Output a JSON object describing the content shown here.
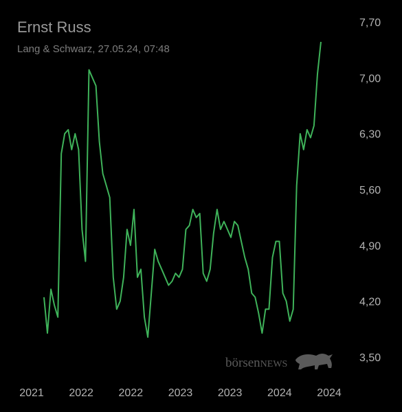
{
  "header": {
    "title": "Ernst Russ",
    "subtitle": "Lang & Schwarz, 27.05.24, 07:48"
  },
  "watermark": {
    "text_lower": "börsen",
    "text_upper": "NEWS",
    "icon": "bull-icon"
  },
  "colors": {
    "background": "#000000",
    "line": "#3fb35a",
    "text": "#b3b3b3"
  },
  "chart_data": {
    "type": "line",
    "title": "Ernst Russ",
    "ylim": [
      3.5,
      7.7
    ],
    "y_ticks": [
      "7,70",
      "7,00",
      "6,30",
      "5,60",
      "4,90",
      "4,20",
      "3,50"
    ],
    "x_ticks": [
      "2021",
      "2022",
      "2022",
      "2023",
      "2023",
      "2024",
      "2024"
    ],
    "grid": false,
    "legend": "none",
    "series": [
      {
        "values": [
          4.25,
          3.8,
          4.35,
          4.15,
          4.0,
          6.05,
          6.3,
          6.35,
          6.1,
          6.3,
          6.1,
          5.1,
          4.7,
          7.1,
          7.0,
          6.9,
          6.2,
          5.8,
          5.65,
          5.5,
          4.5,
          4.1,
          4.2,
          4.5,
          5.1,
          4.9,
          5.35,
          4.5,
          4.6,
          4.0,
          3.75,
          4.3,
          4.85,
          4.7,
          4.6,
          4.5,
          4.4,
          4.45,
          4.55,
          4.5,
          4.6,
          5.1,
          5.15,
          5.35,
          5.25,
          5.3,
          4.55,
          4.45,
          4.6,
          5.05,
          5.35,
          5.1,
          5.2,
          5.1,
          5.0,
          5.2,
          5.15,
          4.95,
          4.75,
          4.6,
          4.3,
          4.25,
          4.05,
          3.8,
          4.1,
          4.1,
          4.75,
          4.95,
          4.95,
          4.3,
          4.2,
          3.95,
          4.1,
          5.65,
          6.3,
          6.1,
          6.35,
          6.25,
          6.4,
          7.05,
          7.45
        ]
      }
    ]
  }
}
